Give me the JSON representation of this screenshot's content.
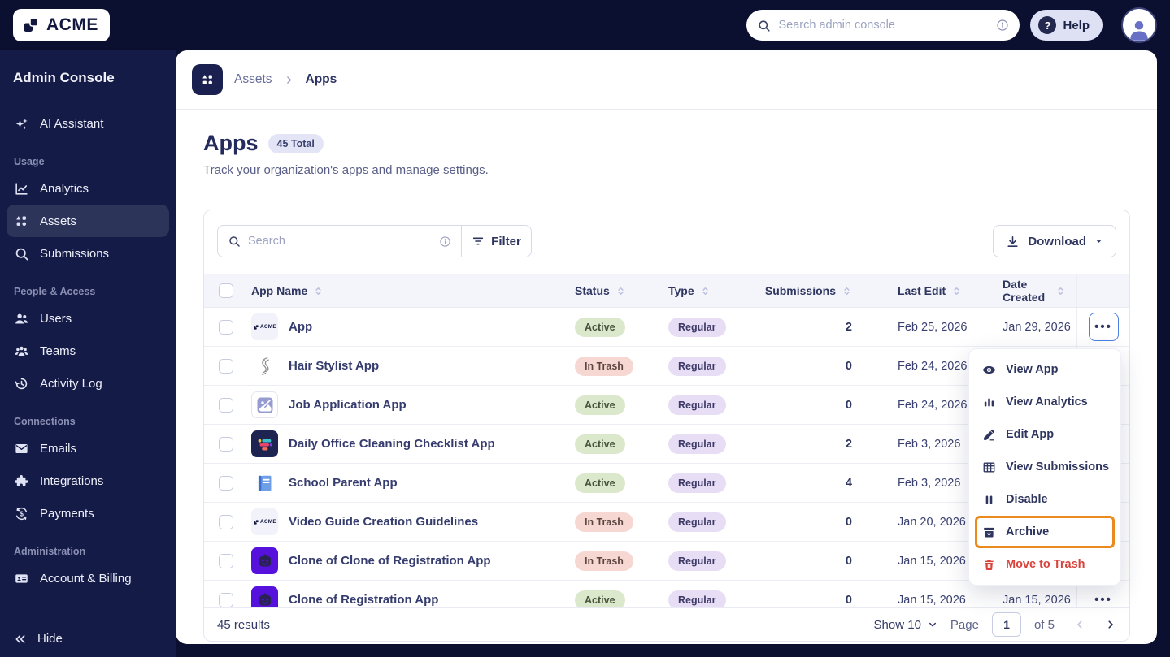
{
  "topbar": {
    "logo_text": "ACME",
    "search_placeholder": "Search admin console",
    "help_label": "Help"
  },
  "sidebar": {
    "title": "Admin Console",
    "assistant": {
      "label": "AI Assistant",
      "icon": "sparkle"
    },
    "sections": [
      {
        "label": "Usage",
        "items": [
          {
            "label": "Analytics",
            "icon": "analytics",
            "active": false
          },
          {
            "label": "Assets",
            "icon": "assets",
            "active": true
          },
          {
            "label": "Submissions",
            "icon": "search",
            "active": false
          }
        ]
      },
      {
        "label": "People & Access",
        "items": [
          {
            "label": "Users",
            "icon": "users",
            "active": false
          },
          {
            "label": "Teams",
            "icon": "teams",
            "active": false
          },
          {
            "label": "Activity Log",
            "icon": "activity",
            "active": false
          }
        ]
      },
      {
        "label": "Connections",
        "items": [
          {
            "label": "Emails",
            "icon": "email",
            "active": false
          },
          {
            "label": "Integrations",
            "icon": "puzzle",
            "active": false
          },
          {
            "label": "Payments",
            "icon": "payments",
            "active": false
          }
        ]
      },
      {
        "label": "Administration",
        "items": [
          {
            "label": "Account & Billing",
            "icon": "idcard",
            "active": false
          }
        ]
      }
    ],
    "hide_label": "Hide"
  },
  "breadcrumb": {
    "parent": "Assets",
    "current": "Apps"
  },
  "page": {
    "title": "Apps",
    "total_badge": "45 Total",
    "subtitle": "Track your organization's apps and manage settings."
  },
  "toolbar": {
    "search_placeholder": "Search",
    "filter_label": "Filter",
    "download_label": "Download"
  },
  "table": {
    "columns": [
      "App Name",
      "Status",
      "Type",
      "Submissions",
      "Last Edit",
      "Date Created"
    ],
    "rows": [
      {
        "name": "App",
        "tile": "acme",
        "status": "Active",
        "type": "Regular",
        "submissions": "2",
        "last_edit": "Feb 25, 2026",
        "date_created": "Jan 29, 2026",
        "menu_open": true
      },
      {
        "name": "Hair Stylist App",
        "tile": "hair",
        "status": "In Trash",
        "type": "Regular",
        "submissions": "0",
        "last_edit": "Feb 24, 2026",
        "date_created": ""
      },
      {
        "name": "Job Application App",
        "tile": "image",
        "status": "Active",
        "type": "Regular",
        "submissions": "0",
        "last_edit": "Feb 24, 2026",
        "date_created": ""
      },
      {
        "name": "Daily Office Cleaning Checklist App",
        "tile": "checklist",
        "status": "Active",
        "type": "Regular",
        "submissions": "2",
        "last_edit": "Feb 3, 2026",
        "date_created": ""
      },
      {
        "name": "School Parent App",
        "tile": "book",
        "status": "Active",
        "type": "Regular",
        "submissions": "4",
        "last_edit": "Feb 3, 2026",
        "date_created": ""
      },
      {
        "name": "Video Guide Creation Guidelines",
        "tile": "acme",
        "status": "In Trash",
        "type": "Regular",
        "submissions": "0",
        "last_edit": "Jan 20, 2026",
        "date_created": ""
      },
      {
        "name": "Clone of Clone of Registration App",
        "tile": "robot",
        "status": "In Trash",
        "type": "Regular",
        "submissions": "0",
        "last_edit": "Jan 15, 2026",
        "date_created": ""
      },
      {
        "name": "Clone of Registration App",
        "tile": "robot",
        "status": "Active",
        "type": "Regular",
        "submissions": "0",
        "last_edit": "Jan 15, 2026",
        "date_created": "Jan 15, 2026"
      }
    ]
  },
  "context_menu": {
    "items": [
      {
        "label": "View App",
        "icon": "eye"
      },
      {
        "label": "View Analytics",
        "icon": "bars"
      },
      {
        "label": "Edit App",
        "icon": "pencil"
      },
      {
        "label": "View Submissions",
        "icon": "grid"
      },
      {
        "label": "Disable",
        "icon": "pause"
      },
      {
        "label": "Archive",
        "icon": "archive",
        "highlighted": true
      },
      {
        "label": "Move to Trash",
        "icon": "trash",
        "danger": true
      }
    ]
  },
  "pagination": {
    "results": "45 results",
    "show_label": "Show 10",
    "page_label": "Page",
    "page_value": "1",
    "of_label": "of 5"
  },
  "colors": {
    "topbar_bg": "#0B0F30",
    "sidebar_bg": "#151B47",
    "sidebar_active_bg": "#2D3459",
    "accent_blue": "#4B7FE2",
    "highlight_orange": "#EB8A1E",
    "danger_red": "#D9433B",
    "badge_active_bg": "#DCE8CB",
    "badge_trash_bg": "#F7D7D1",
    "badge_regular_bg": "#E7DEF6",
    "text_navy": "#2E355F"
  }
}
